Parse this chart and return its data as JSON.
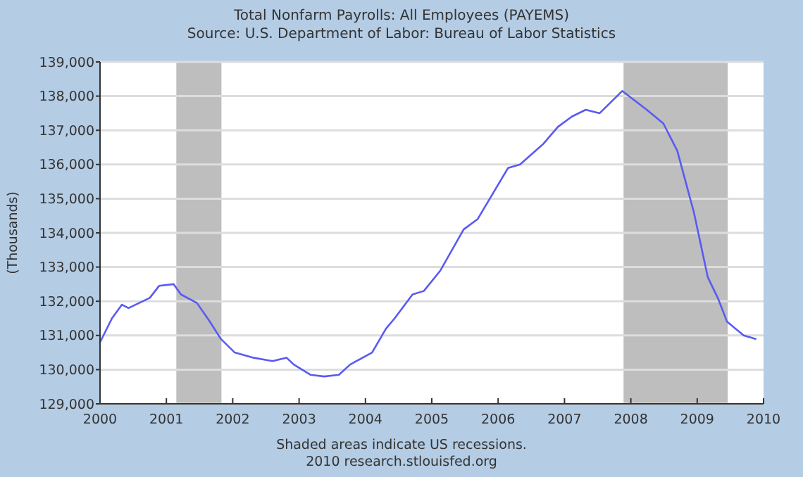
{
  "chart_data": {
    "type": "line",
    "title": "Total Nonfarm Payrolls: All Employees (PAYEMS)",
    "subtitle": "Source: U.S. Department of Labor: Bureau of Labor Statistics",
    "ylabel": "(Thousands)",
    "annotations": [
      "Shaded areas indicate US recessions.",
      "2010 research.stlouisfed.org"
    ],
    "x": [
      2000.0,
      2000.18,
      2000.33,
      2000.43,
      2000.75,
      2000.89,
      2001.11,
      2001.22,
      2001.46,
      2001.64,
      2001.82,
      2002.03,
      2002.31,
      2002.6,
      2002.81,
      2002.92,
      2003.17,
      2003.38,
      2003.6,
      2003.77,
      2004.1,
      2004.31,
      2004.44,
      2004.71,
      2004.88,
      2005.13,
      2005.48,
      2005.69,
      2006.15,
      2006.33,
      2006.68,
      2006.9,
      2007.11,
      2007.32,
      2007.53,
      2007.87,
      2008.24,
      2008.49,
      2008.7,
      2008.95,
      2009.16,
      2009.31,
      2009.45,
      2009.7,
      2009.88
    ],
    "series": [
      {
        "color": "#5a5af2",
        "values": [
          130800,
          131500,
          131900,
          131800,
          132100,
          132450,
          132500,
          132200,
          131950,
          131450,
          130900,
          130500,
          130350,
          130250,
          130350,
          130150,
          129850,
          129800,
          129850,
          130150,
          130500,
          131200,
          131500,
          132200,
          132300,
          132900,
          134100,
          134400,
          135900,
          136000,
          136600,
          137100,
          137400,
          137600,
          137500,
          138150,
          137600,
          137200,
          136400,
          134600,
          132700,
          132100,
          131400,
          131000,
          130900
        ]
      }
    ],
    "xlim": [
      2000,
      2010
    ],
    "xticks": [
      2000,
      2001,
      2002,
      2003,
      2004,
      2005,
      2006,
      2007,
      2008,
      2009,
      2010
    ],
    "ylim": [
      129000,
      139000
    ],
    "yticks": [
      {
        "value": 129000,
        "label": "129,000"
      },
      {
        "value": 130000,
        "label": "130,000"
      },
      {
        "value": 131000,
        "label": "131,000"
      },
      {
        "value": 132000,
        "label": "132,000"
      },
      {
        "value": 133000,
        "label": "133,000"
      },
      {
        "value": 134000,
        "label": "134,000"
      },
      {
        "value": 135000,
        "label": "135,000"
      },
      {
        "value": 136000,
        "label": "136,000"
      },
      {
        "value": 137000,
        "label": "137,000"
      },
      {
        "value": 138000,
        "label": "138,000"
      },
      {
        "value": 139000,
        "label": "139,000"
      }
    ],
    "bands": [
      {
        "axis": "x",
        "from": 2001.15,
        "to": 2001.83,
        "color": "#bebebe"
      },
      {
        "axis": "x",
        "from": 2007.89,
        "to": 2009.46,
        "color": "#bebebe"
      }
    ],
    "grid": "y",
    "line_style": "solid",
    "marker": "none"
  }
}
